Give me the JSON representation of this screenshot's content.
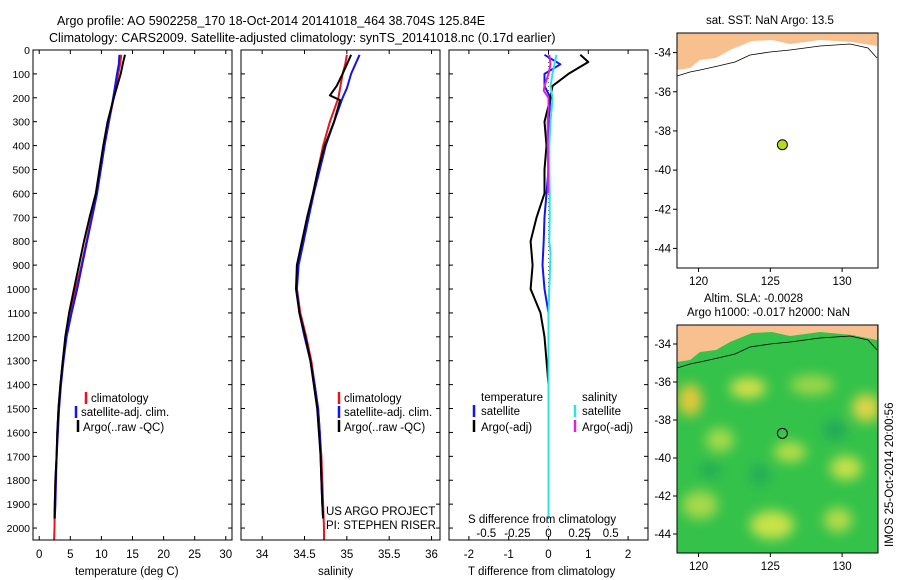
{
  "header": {
    "line1": "Argo profile: AO 5902258_170 18-Oct-2014 20141018_464 38.704S 125.84E",
    "line2": "Climatology: CARS2009. Satellite-adjusted climatology: synTS_20141018.nc (0.17d earlier)"
  },
  "colors": {
    "climatology": "#e8141e",
    "satellite": "#1414ee",
    "argo": "#000000",
    "salinity_satellite": "#28e4e4",
    "salinity_argo": "#e020e0",
    "land": "#f9c08f",
    "marker": "#b4dc1e",
    "map_field": "#34c24a"
  },
  "depth_axis": {
    "ylim": [
      0,
      2050
    ],
    "ticks": [
      0,
      100,
      200,
      300,
      400,
      500,
      600,
      700,
      800,
      900,
      1000,
      1100,
      1200,
      1300,
      1400,
      1500,
      1600,
      1700,
      1800,
      1900,
      2000
    ]
  },
  "chart_data": [
    {
      "id": "temperature",
      "type": "line",
      "xlabel": "temperature (deg C)",
      "xlim": [
        -1,
        31
      ],
      "xticks": [
        0,
        5,
        10,
        15,
        20,
        25,
        30
      ],
      "legend": [
        "climatology",
        "satellite-adj. clim.",
        "Argo(..raw -QC)"
      ],
      "series": [
        {
          "name": "climatology",
          "color_key": "climatology",
          "points": [
            [
              13.2,
              20
            ],
            [
              13.0,
              60
            ],
            [
              12.7,
              100
            ],
            [
              12.0,
              200
            ],
            [
              11.2,
              300
            ],
            [
              10.5,
              400
            ],
            [
              9.9,
              500
            ],
            [
              9.2,
              600
            ],
            [
              8.4,
              700
            ],
            [
              7.6,
              800
            ],
            [
              6.8,
              900
            ],
            [
              5.9,
              1000
            ],
            [
              5.0,
              1100
            ],
            [
              4.3,
              1200
            ],
            [
              3.8,
              1300
            ],
            [
              3.4,
              1400
            ],
            [
              3.1,
              1500
            ],
            [
              2.9,
              1600
            ],
            [
              2.8,
              1700
            ],
            [
              2.6,
              1800
            ],
            [
              2.5,
              1900
            ],
            [
              2.45,
              2000
            ],
            [
              2.4,
              2050
            ]
          ]
        },
        {
          "name": "satellite",
          "color_key": "satellite",
          "points": [
            [
              12.9,
              20
            ],
            [
              12.8,
              60
            ],
            [
              12.5,
              100
            ],
            [
              11.9,
              200
            ],
            [
              11.2,
              300
            ],
            [
              10.5,
              400
            ],
            [
              9.9,
              500
            ],
            [
              9.3,
              600
            ],
            [
              8.5,
              700
            ],
            [
              7.7,
              800
            ],
            [
              6.9,
              900
            ],
            [
              6.1,
              1000
            ],
            [
              5.2,
              1100
            ],
            [
              4.4,
              1200
            ],
            [
              3.9,
              1300
            ],
            [
              3.5,
              1400
            ],
            [
              3.2,
              1500
            ],
            [
              3.0,
              1600
            ],
            [
              2.8,
              1700
            ],
            [
              2.7,
              1800
            ],
            [
              2.6,
              1900
            ],
            [
              2.5,
              1960
            ]
          ]
        },
        {
          "name": "argo",
          "color_key": "argo",
          "points": [
            [
              13.8,
              20
            ],
            [
              13.5,
              50
            ],
            [
              13.1,
              100
            ],
            [
              12.0,
              200
            ],
            [
              11.0,
              300
            ],
            [
              10.3,
              400
            ],
            [
              9.7,
              500
            ],
            [
              9.1,
              600
            ],
            [
              8.1,
              700
            ],
            [
              7.2,
              800
            ],
            [
              6.4,
              900
            ],
            [
              5.6,
              1000
            ],
            [
              4.8,
              1100
            ],
            [
              4.2,
              1200
            ],
            [
              3.8,
              1300
            ],
            [
              3.4,
              1400
            ],
            [
              3.1,
              1500
            ],
            [
              2.9,
              1600
            ],
            [
              2.8,
              1700
            ],
            [
              2.6,
              1800
            ],
            [
              2.5,
              1900
            ],
            [
              2.45,
              1960
            ]
          ]
        }
      ]
    },
    {
      "id": "salinity",
      "type": "line",
      "xlabel": "salinity",
      "xlim": [
        33.75,
        36.1
      ],
      "xticks": [
        34,
        34.5,
        35,
        35.5,
        36
      ],
      "tick_labels": [
        "34",
        "34.5",
        "35",
        "35.5",
        "36"
      ],
      "legend": [
        "climatology",
        "satellite-adj. clim.",
        "Argo(..raw -QC)"
      ],
      "series": [
        {
          "name": "climatology",
          "color_key": "climatology",
          "points": [
            [
              35.0,
              20
            ],
            [
              34.98,
              60
            ],
            [
              34.95,
              100
            ],
            [
              34.9,
              200
            ],
            [
              34.8,
              300
            ],
            [
              34.72,
              400
            ],
            [
              34.66,
              500
            ],
            [
              34.6,
              600
            ],
            [
              34.54,
              700
            ],
            [
              34.48,
              800
            ],
            [
              34.42,
              900
            ],
            [
              34.41,
              1000
            ],
            [
              34.45,
              1100
            ],
            [
              34.52,
              1200
            ],
            [
              34.58,
              1300
            ],
            [
              34.62,
              1400
            ],
            [
              34.66,
              1500
            ],
            [
              34.68,
              1600
            ],
            [
              34.7,
              1700
            ],
            [
              34.71,
              1800
            ],
            [
              34.72,
              1900
            ],
            [
              34.73,
              2000
            ],
            [
              34.73,
              2050
            ]
          ]
        },
        {
          "name": "satellite",
          "color_key": "satellite",
          "points": [
            [
              35.15,
              20
            ],
            [
              35.1,
              60
            ],
            [
              35.05,
              100
            ],
            [
              35.0,
              160
            ],
            [
              34.95,
              200
            ],
            [
              34.85,
              300
            ],
            [
              34.75,
              400
            ],
            [
              34.68,
              500
            ],
            [
              34.61,
              600
            ],
            [
              34.55,
              700
            ],
            [
              34.49,
              800
            ],
            [
              34.43,
              900
            ],
            [
              34.41,
              1000
            ],
            [
              34.44,
              1100
            ],
            [
              34.5,
              1200
            ],
            [
              34.57,
              1300
            ],
            [
              34.62,
              1400
            ],
            [
              34.66,
              1500
            ],
            [
              34.68,
              1600
            ],
            [
              34.69,
              1700
            ],
            [
              34.7,
              1800
            ],
            [
              34.71,
              1900
            ],
            [
              34.72,
              1960
            ]
          ]
        },
        {
          "name": "argo",
          "color_key": "argo",
          "points": [
            [
              35.05,
              20
            ],
            [
              35.0,
              60
            ],
            [
              34.95,
              100
            ],
            [
              34.88,
              150
            ],
            [
              34.8,
              190
            ],
            [
              34.92,
              210
            ],
            [
              34.85,
              300
            ],
            [
              34.74,
              400
            ],
            [
              34.66,
              500
            ],
            [
              34.6,
              600
            ],
            [
              34.53,
              700
            ],
            [
              34.47,
              800
            ],
            [
              34.41,
              900
            ],
            [
              34.4,
              1000
            ],
            [
              34.44,
              1100
            ],
            [
              34.51,
              1200
            ],
            [
              34.57,
              1300
            ],
            [
              34.61,
              1400
            ],
            [
              34.65,
              1500
            ],
            [
              34.67,
              1600
            ],
            [
              34.69,
              1700
            ],
            [
              34.7,
              1800
            ],
            [
              34.71,
              1900
            ],
            [
              34.72,
              1960
            ]
          ]
        }
      ],
      "annotation": [
        "US ARGO PROJECT",
        "PI: STEPHEN RISER"
      ]
    },
    {
      "id": "difference",
      "type": "line",
      "xlabel": "T difference from climatology",
      "xlim": [
        -2.5,
        2.5
      ],
      "xticks": [
        -2,
        -1,
        0,
        1,
        2
      ],
      "top_label": "S difference from climatology",
      "s_ticks": [
        -0.5,
        -0.25,
        0,
        0.25,
        0.5
      ],
      "s_tick_labels": [
        "-0.5",
        "-0.25",
        "0",
        "0.25",
        "0.5"
      ],
      "legend_left_title": "temperature",
      "legend_right_title": "salinity",
      "legend_left": [
        "satellite",
        "Argo(-adj)"
      ],
      "legend_right": [
        "satellite",
        "Argo(-adj)"
      ],
      "series": [
        {
          "name": "T satellite",
          "color_key": "satellite",
          "points": [
            [
              -0.1,
              20
            ],
            [
              0.3,
              60
            ],
            [
              -0.1,
              100
            ],
            [
              -0.1,
              150
            ],
            [
              0.05,
              200
            ],
            [
              0.0,
              300
            ],
            [
              0.0,
              400
            ],
            [
              0.0,
              500
            ],
            [
              -0.05,
              600
            ],
            [
              -0.1,
              700
            ],
            [
              -0.12,
              800
            ],
            [
              -0.15,
              900
            ],
            [
              -0.1,
              1000
            ],
            [
              0.0,
              1100
            ],
            [
              0.0,
              1200
            ],
            [
              0.0,
              1400
            ],
            [
              0.0,
              1600
            ],
            [
              0.0,
              1800
            ],
            [
              0.0,
              1960
            ]
          ]
        },
        {
          "name": "T argo",
          "color_key": "argo",
          "points": [
            [
              0.8,
              20
            ],
            [
              1.0,
              50
            ],
            [
              0.5,
              100
            ],
            [
              0.1,
              150
            ],
            [
              0.05,
              200
            ],
            [
              -0.1,
              300
            ],
            [
              -0.05,
              400
            ],
            [
              -0.1,
              500
            ],
            [
              -0.1,
              600
            ],
            [
              -0.3,
              700
            ],
            [
              -0.45,
              800
            ],
            [
              -0.4,
              900
            ],
            [
              -0.45,
              1000
            ],
            [
              -0.2,
              1100
            ],
            [
              -0.1,
              1200
            ],
            [
              -0.05,
              1300
            ],
            [
              0.0,
              1400
            ],
            [
              0.0,
              1600
            ],
            [
              0.0,
              1800
            ],
            [
              0.0,
              1960
            ]
          ]
        },
        {
          "name": "S satellite",
          "color_key": "salinity_satellite",
          "points": [
            [
              0.2,
              20
            ],
            [
              0.15,
              60
            ],
            [
              0.1,
              100
            ],
            [
              0.05,
              150
            ],
            [
              0.1,
              200
            ],
            [
              0.05,
              300
            ],
            [
              0.02,
              400
            ],
            [
              0.02,
              500
            ],
            [
              0.03,
              600
            ],
            [
              0.03,
              700
            ],
            [
              0.02,
              800
            ],
            [
              0.05,
              850
            ],
            [
              0.03,
              950
            ],
            [
              0.0,
              1100
            ],
            [
              0.0,
              1300
            ],
            [
              0.0,
              1500
            ],
            [
              0.0,
              1700
            ],
            [
              0.0,
              1960
            ]
          ]
        },
        {
          "name": "S argo",
          "color_key": "salinity_argo",
          "points": [
            [
              0.02,
              20
            ],
            [
              0.05,
              60
            ],
            [
              0.0,
              100
            ],
            [
              -0.1,
              150
            ],
            [
              -0.12,
              170
            ],
            [
              0.0,
              200
            ],
            [
              0.0,
              250
            ],
            [
              -0.02,
              300
            ],
            [
              -0.02,
              400
            ],
            [
              -0.01,
              500
            ],
            [
              -0.01,
              600
            ]
          ]
        }
      ]
    }
  ],
  "map_top": {
    "title": "sat. SST: NaN Argo: 13.5",
    "xlim": [
      118.5,
      132.5
    ],
    "ylim": [
      -45,
      -33
    ],
    "xticks": [
      120,
      125,
      130
    ],
    "yticks": [
      -34,
      -36,
      -38,
      -40,
      -42,
      -44
    ],
    "marker": {
      "lon": 125.84,
      "lat": -38.704
    }
  },
  "map_bottom": {
    "title_line1": "Altim. SLA: -0.0028",
    "title_line2": "Argo h1000: -0.017 h2000: NaN",
    "xlim": [
      118.5,
      132.5
    ],
    "ylim": [
      -45,
      -33
    ],
    "xticks": [
      120,
      125,
      130
    ],
    "yticks": [
      -34,
      -36,
      -38,
      -40,
      -42,
      -44
    ],
    "marker": {
      "lon": 125.84,
      "lat": -38.704
    }
  },
  "stamp": "IMOS 25-Oct-2014 20:00:56"
}
